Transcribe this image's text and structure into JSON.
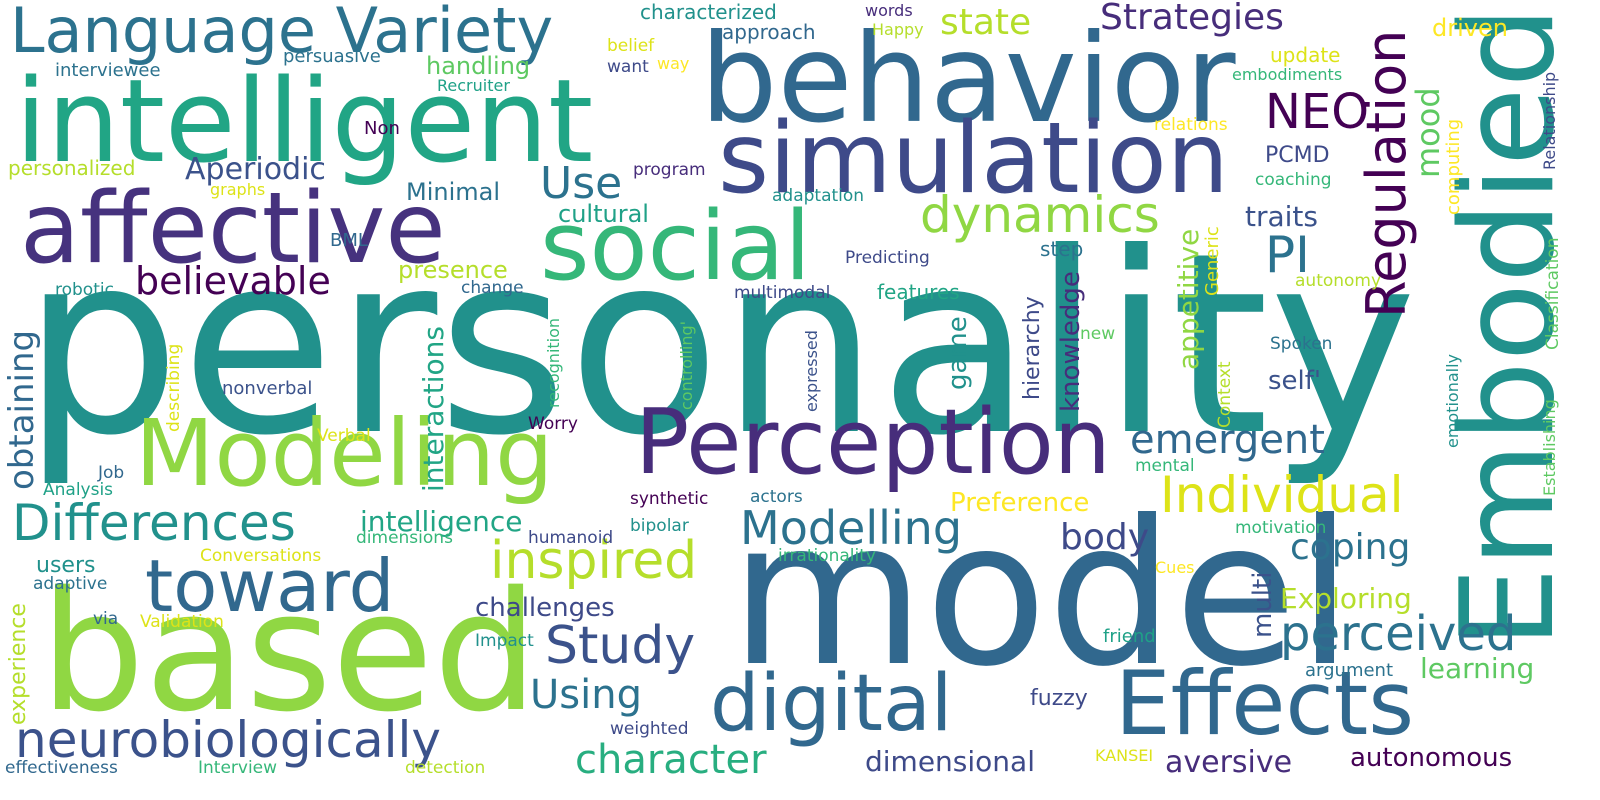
{
  "words": [
    {
      "text": "personality",
      "color": "#21918c"
    },
    {
      "text": "model",
      "color": "#31688e"
    },
    {
      "text": "based",
      "color": "#90d743"
    },
    {
      "text": "Embodied",
      "color": "#21918c"
    },
    {
      "text": "behavior",
      "color": "#31688e"
    },
    {
      "text": "intelligent",
      "color": "#21a585"
    },
    {
      "text": "simulation",
      "color": "#3e4a89"
    },
    {
      "text": "affective",
      "color": "#46327e"
    },
    {
      "text": "social",
      "color": "#35b779"
    },
    {
      "text": "Modeling",
      "color": "#90d743"
    },
    {
      "text": "Perception",
      "color": "#472d7b"
    },
    {
      "text": "Effects",
      "color": "#31688e"
    },
    {
      "text": "toward",
      "color": "#31688e"
    },
    {
      "text": "digital",
      "color": "#31688e"
    },
    {
      "text": "Language Variety",
      "color": "#2c728e"
    },
    {
      "text": "neurobiologically",
      "color": "#3b528b"
    },
    {
      "text": "Differences",
      "color": "#21918c"
    },
    {
      "text": "inspired",
      "color": "#b5de2b"
    },
    {
      "text": "Modelling",
      "color": "#2c728e"
    },
    {
      "text": "Individual",
      "color": "#dde318"
    },
    {
      "text": "dynamics",
      "color": "#90d743"
    },
    {
      "text": "Regulation",
      "color": "#440154"
    },
    {
      "text": "Study",
      "color": "#3b528b"
    },
    {
      "text": "perceived",
      "color": "#2c728e"
    },
    {
      "text": "emergent",
      "color": "#31688e"
    },
    {
      "text": "character",
      "color": "#28ae80"
    },
    {
      "text": "believable",
      "color": "#440154"
    },
    {
      "text": "Using",
      "color": "#2c728e"
    },
    {
      "text": "Use",
      "color": "#2c728e"
    },
    {
      "text": "PI",
      "color": "#2c728e"
    },
    {
      "text": "NEO",
      "color": "#440154"
    },
    {
      "text": "state",
      "color": "#b5de2b"
    },
    {
      "text": "Strategies",
      "color": "#472d7b"
    },
    {
      "text": "obtaining",
      "color": "#31688e"
    },
    {
      "text": "coping",
      "color": "#2c728e"
    },
    {
      "text": "body",
      "color": "#3e4a89"
    },
    {
      "text": "Aperiodic",
      "color": "#3b528b"
    },
    {
      "text": "intelligence",
      "color": "#21a585"
    },
    {
      "text": "aversive",
      "color": "#472d7b"
    },
    {
      "text": "Exploring",
      "color": "#b5de2b"
    },
    {
      "text": "learning",
      "color": "#5ec962"
    },
    {
      "text": "challenges",
      "color": "#3e4a89"
    },
    {
      "text": "dimensional",
      "color": "#3e4a89"
    },
    {
      "text": "autonomous",
      "color": "#440154"
    },
    {
      "text": "interactions",
      "color": "#21a585"
    },
    {
      "text": "appetitive",
      "color": "#90d743"
    },
    {
      "text": "Preference",
      "color": "#fde725"
    },
    {
      "text": "mood",
      "color": "#5ec962"
    },
    {
      "text": "traits",
      "color": "#3b528b"
    },
    {
      "text": "knowledge",
      "color": "#472d7b"
    },
    {
      "text": "self'",
      "color": "#3b528b"
    },
    {
      "text": "game",
      "color": "#21918c"
    },
    {
      "text": "hierarchy",
      "color": "#3e4a89"
    },
    {
      "text": "multi",
      "color": "#3b528b"
    },
    {
      "text": "presence",
      "color": "#b5de2b"
    },
    {
      "text": "cultural",
      "color": "#1fa187"
    },
    {
      "text": "Minimal",
      "color": "#2c728e"
    },
    {
      "text": "handling",
      "color": "#5ec962"
    },
    {
      "text": "PCMD",
      "color": "#3e4a89"
    },
    {
      "text": "fuzzy",
      "color": "#3e4a89"
    },
    {
      "text": "driven",
      "color": "#fde725"
    },
    {
      "text": "approach",
      "color": "#31688e"
    },
    {
      "text": "characterized",
      "color": "#21918c"
    },
    {
      "text": "update",
      "color": "#dde318"
    },
    {
      "text": "computing",
      "color": "#fde725"
    },
    {
      "text": "users",
      "color": "#21918c"
    },
    {
      "text": "experience",
      "color": "#b5de2b"
    },
    {
      "text": "personalized",
      "color": "#b5de2b"
    },
    {
      "text": "persuasive",
      "color": "#2c728e"
    },
    {
      "text": "interviewee",
      "color": "#2c728e"
    },
    {
      "text": "Recruiter",
      "color": "#1fa187"
    },
    {
      "text": "Non",
      "color": "#440154"
    },
    {
      "text": "graphs",
      "color": "#dde318"
    },
    {
      "text": "BML",
      "color": "#31688e"
    },
    {
      "text": "robotic",
      "color": "#21918c"
    },
    {
      "text": "nonverbal",
      "color": "#3b528b"
    },
    {
      "text": "describing",
      "color": "#dde318"
    },
    {
      "text": "Verbal",
      "color": "#dde318"
    },
    {
      "text": "Job",
      "color": "#31688e"
    },
    {
      "text": "Analysis",
      "color": "#1fa187"
    },
    {
      "text": "Conversations",
      "color": "#dde318"
    },
    {
      "text": "dimensions",
      "color": "#35b779"
    },
    {
      "text": "adaptive",
      "color": "#2c728e"
    },
    {
      "text": "via",
      "color": "#31688e"
    },
    {
      "text": "Validation",
      "color": "#dde318"
    },
    {
      "text": "effectiveness",
      "color": "#31688e"
    },
    {
      "text": "Interview",
      "color": "#35b779"
    },
    {
      "text": "detection",
      "color": "#b5de2b"
    },
    {
      "text": "weighted",
      "color": "#3e4a89"
    },
    {
      "text": "Impact",
      "color": "#21918c"
    },
    {
      "text": "humanoid",
      "color": "#3e4a89"
    },
    {
      "text": "bipolar",
      "color": "#21918c"
    },
    {
      "text": "synthetic",
      "color": "#440154"
    },
    {
      "text": "actors",
      "color": "#2c728e"
    },
    {
      "text": "Worry",
      "color": "#440154"
    },
    {
      "text": "irrationality",
      "color": "#35b779"
    },
    {
      "text": "recognition",
      "color": "#35b779"
    },
    {
      "text": "controlling'",
      "color": "#5ec962"
    },
    {
      "text": "expressed",
      "color": "#3b528b"
    },
    {
      "text": "change",
      "color": "#31688e"
    },
    {
      "text": "multimodal",
      "color": "#3e4a89"
    },
    {
      "text": "Predicting",
      "color": "#3e4a89"
    },
    {
      "text": "features",
      "color": "#21a585"
    },
    {
      "text": "step",
      "color": "#2c728e"
    },
    {
      "text": "new",
      "color": "#5ec962"
    },
    {
      "text": "adaptation",
      "color": "#21918c"
    },
    {
      "text": "program",
      "color": "#472d7b"
    },
    {
      "text": "belief",
      "color": "#dde318"
    },
    {
      "text": "want",
      "color": "#3e4a89"
    },
    {
      "text": "way",
      "color": "#fde725"
    },
    {
      "text": "words",
      "color": "#472d7b"
    },
    {
      "text": "Happy",
      "color": "#b5de2b"
    },
    {
      "text": "Context",
      "color": "#b5de2b"
    },
    {
      "text": "Generic",
      "color": "#dde318"
    },
    {
      "text": "Spoken",
      "color": "#2c728e"
    },
    {
      "text": "autonomy",
      "color": "#b5de2b"
    },
    {
      "text": "coaching",
      "color": "#35b779"
    },
    {
      "text": "relations",
      "color": "#fde725"
    },
    {
      "text": "embodiments",
      "color": "#35b779"
    },
    {
      "text": "emotionally",
      "color": "#21918c"
    },
    {
      "text": "Establishing",
      "color": "#5ec962"
    },
    {
      "text": "Classification",
      "color": "#5ec962"
    },
    {
      "text": "Relationship",
      "color": "#3e4a89"
    },
    {
      "text": "mental",
      "color": "#35b779"
    },
    {
      "text": "motivation",
      "color": "#35b779"
    },
    {
      "text": "Cues",
      "color": "#fde725"
    },
    {
      "text": "friend",
      "color": "#1fa187"
    },
    {
      "text": "argument",
      "color": "#2c728e"
    },
    {
      "text": "KANSEI",
      "color": "#dde318"
    }
  ]
}
